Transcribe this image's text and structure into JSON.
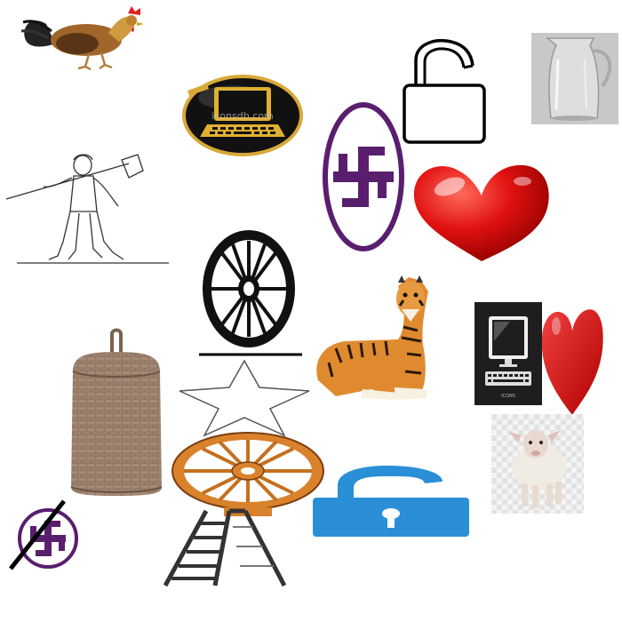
{
  "canvas": {
    "background": "#ffffff"
  },
  "icons": [
    {
      "name": "rooster-icon"
    },
    {
      "name": "laptop-badge-icon",
      "label": "iconsdb.com",
      "color": "#e0b030"
    },
    {
      "name": "open-padlock-outline-icon",
      "color": "#000000"
    },
    {
      "name": "glass-pitcher-icon"
    },
    {
      "name": "farmer-with-shovel-icon"
    },
    {
      "name": "swastika-oval-icon",
      "color": "#5a1e6e"
    },
    {
      "name": "red-heart-3d-icon",
      "color": "#e01010"
    },
    {
      "name": "cart-wheel-icon",
      "color": "#000000"
    },
    {
      "name": "tiger-icon"
    },
    {
      "name": "desktop-computer-icon",
      "label": "ICONS",
      "color": "#1e1e1e"
    },
    {
      "name": "red-heart-small-icon",
      "color": "#e01010"
    },
    {
      "name": "wicker-basket-icon",
      "color": "#8c7260"
    },
    {
      "name": "star-outline-icon",
      "color": "#555555"
    },
    {
      "name": "sheep-icon"
    },
    {
      "name": "dharma-wheel-icon",
      "color": "#d9822b"
    },
    {
      "name": "blue-unlocked-padlock-icon",
      "color": "#2a8fd6"
    },
    {
      "name": "swastika-circle-crossed-icon",
      "color": "#5a1e6e"
    },
    {
      "name": "ladder-icon",
      "color": "#333333"
    }
  ]
}
